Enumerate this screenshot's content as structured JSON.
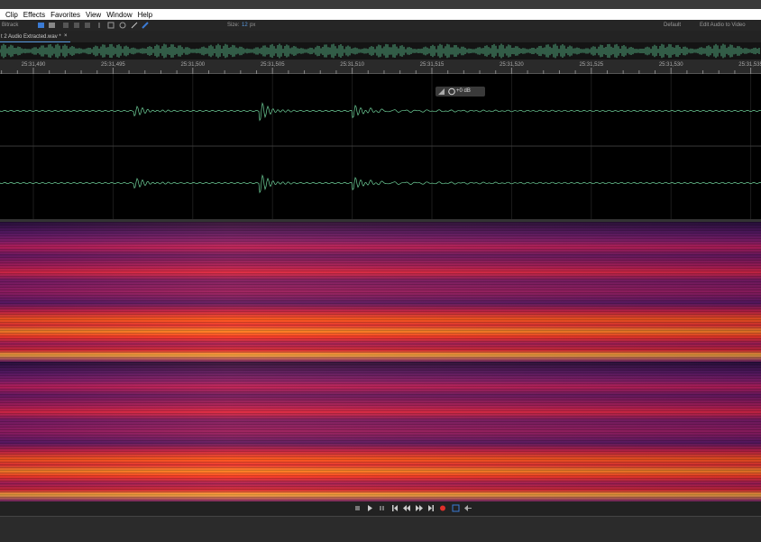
{
  "menu": [
    "Clip",
    "Effects",
    "Favorites",
    "View",
    "Window",
    "Help"
  ],
  "toolbar": {
    "workspace_mode": "Bitrack",
    "size_label": "Size:",
    "size_value": "12",
    "size_unit": "px",
    "workspace": "Default",
    "edit_audio_to_video": "Edit Audio to Video"
  },
  "tab": {
    "title": "t 2 Audio Extracted.wav *",
    "close": "×"
  },
  "ruler": {
    "labels": [
      "25:31,490",
      "25:31,495",
      "25:31,500",
      "25:31,505",
      "25:31,510",
      "25:31,515",
      "25:31,520",
      "25:31,525",
      "25:31,530",
      "25:31,535"
    ]
  },
  "hud": {
    "gain": "+0 dB"
  }
}
